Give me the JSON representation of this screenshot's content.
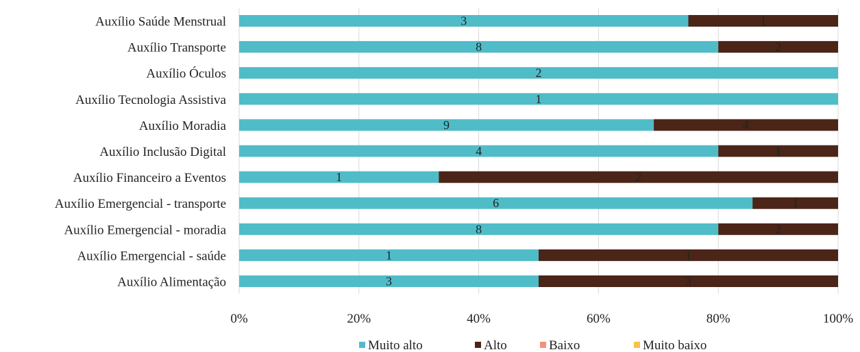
{
  "chart_data": {
    "type": "bar",
    "orientation": "horizontal",
    "stacked": "percent",
    "categories": [
      "Auxílio Saúde Menstrual",
      "Auxílio Transporte",
      "Auxílio Óculos",
      "Auxílio Tecnologia Assistiva",
      "Auxílio Moradia",
      "Auxílio Inclusão Digital",
      "Auxílio Financeiro a Eventos",
      "Auxílio Emergencial - transporte",
      "Auxílio Emergencial - moradia",
      "Auxílio Emergencial - saúde",
      "Auxílio Alimentação"
    ],
    "series": [
      {
        "name": "Muito alto",
        "color": "#4FBCC8",
        "values": [
          3,
          8,
          2,
          1,
          9,
          4,
          1,
          6,
          8,
          1,
          3
        ]
      },
      {
        "name": "Alto",
        "color": "#4A2518",
        "values": [
          1,
          2,
          0,
          0,
          4,
          1,
          2,
          1,
          2,
          1,
          3
        ]
      },
      {
        "name": "Baixo",
        "color": "#F4917B",
        "values": [
          0,
          0,
          0,
          0,
          0,
          0,
          0,
          0,
          0,
          0,
          0
        ]
      },
      {
        "name": "Muito baixo",
        "color": "#F7C14A",
        "values": [
          0,
          0,
          0,
          0,
          0,
          0,
          0,
          0,
          0,
          0,
          0
        ]
      }
    ],
    "x_ticks": [
      "0%",
      "20%",
      "40%",
      "60%",
      "80%",
      "100%"
    ],
    "xlim": [
      0,
      100
    ],
    "grid": "vertical",
    "legend_position": "bottom",
    "title": "",
    "xlabel": "",
    "ylabel": ""
  }
}
